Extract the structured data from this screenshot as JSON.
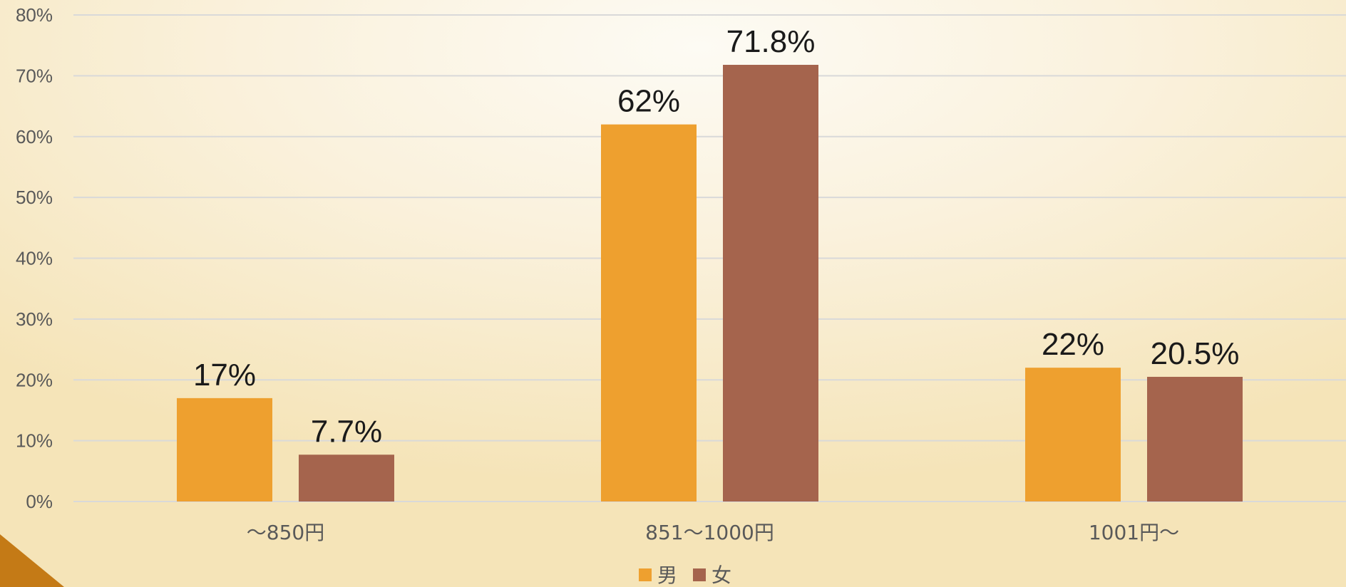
{
  "chart_data": {
    "type": "bar",
    "categories": [
      "～850円",
      "851～1000円",
      "1001円～"
    ],
    "series": [
      {
        "name": "男",
        "values": [
          17,
          62,
          22
        ],
        "labels": [
          "17%",
          "62%",
          "22%"
        ],
        "color": "#eea02f"
      },
      {
        "name": "女",
        "values": [
          7.7,
          71.8,
          20.5
        ],
        "labels": [
          "7.7%",
          "71.8%",
          "20.5%"
        ],
        "color": "#a5644d"
      }
    ],
    "ylim": [
      0,
      80
    ],
    "yticks": [
      "0%",
      "10%",
      "20%",
      "30%",
      "40%",
      "50%",
      "60%",
      "70%",
      "80%"
    ],
    "grid": true,
    "legend_position": "bottom",
    "title": "",
    "xlabel": "",
    "ylabel": ""
  },
  "colors": {
    "accent_corner": "#c47a16",
    "grid": "#d9d9d9",
    "text": "#595959"
  }
}
